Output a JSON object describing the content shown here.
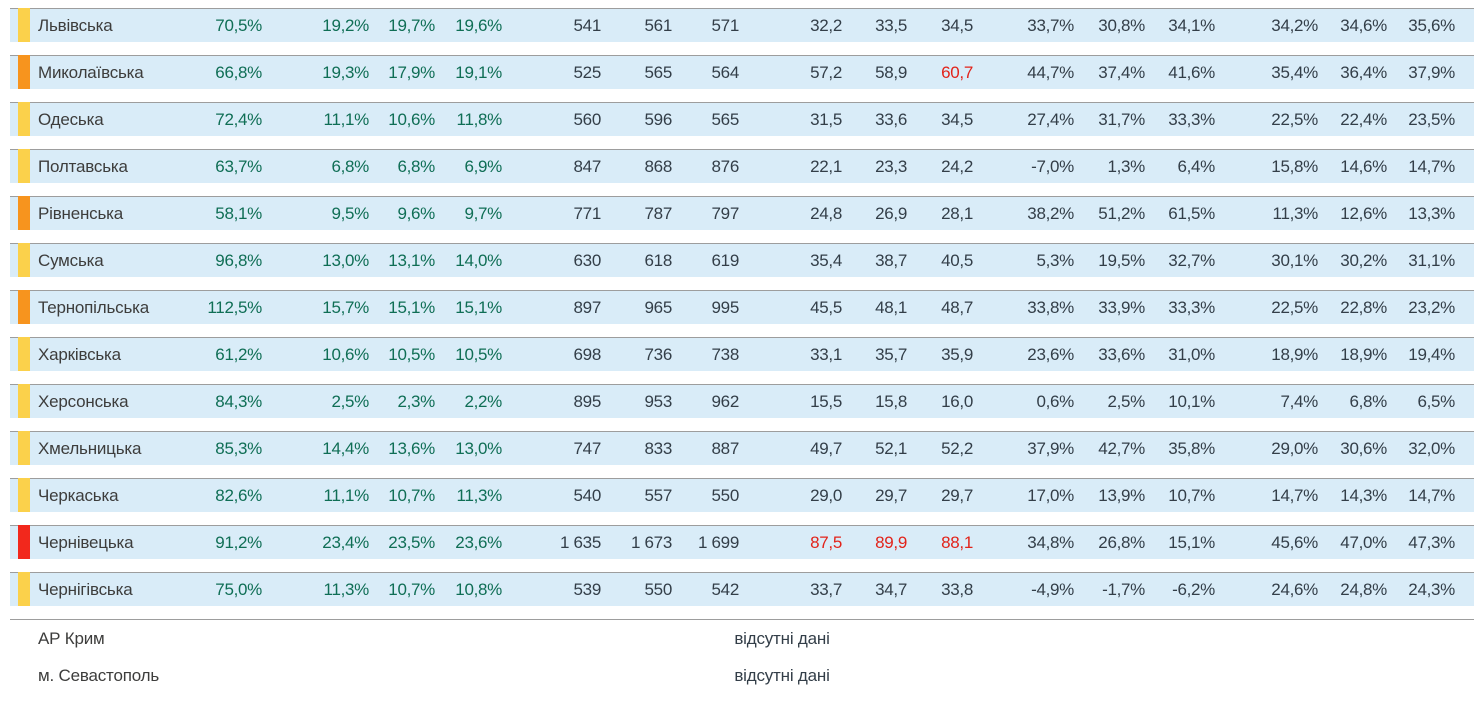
{
  "colors": {
    "row_background": "#d9ecf8",
    "row_border": "#9d9d9d",
    "indicator": {
      "yellow": "#fbd14b",
      "orange": "#f7941e",
      "red": "#f2281c"
    },
    "text_green": "#0f6e55",
    "text_navy": "#333e48",
    "text_red": "#e2231a",
    "text_name": "#3d3d3c"
  },
  "table": {
    "no_data_label": "відсутні дані",
    "rows": [
      {
        "indicator": "yellow",
        "name": "Львівська",
        "values": [
          "70,5%",
          "19,2%",
          "19,7%",
          "19,6%",
          "541",
          "561",
          "571",
          "32,2",
          "33,5",
          "34,5",
          "33,7%",
          "30,8%",
          "34,1%",
          "34,2%",
          "34,6%",
          "35,6%"
        ],
        "red": []
      },
      {
        "indicator": "orange",
        "name": "Миколаївська",
        "values": [
          "66,8%",
          "19,3%",
          "17,9%",
          "19,1%",
          "525",
          "565",
          "564",
          "57,2",
          "58,9",
          "60,7",
          "44,7%",
          "37,4%",
          "41,6%",
          "35,4%",
          "36,4%",
          "37,9%"
        ],
        "red": [
          9
        ]
      },
      {
        "indicator": "yellow",
        "name": "Одеська",
        "values": [
          "72,4%",
          "11,1%",
          "10,6%",
          "11,8%",
          "560",
          "596",
          "565",
          "31,5",
          "33,6",
          "34,5",
          "27,4%",
          "31,7%",
          "33,3%",
          "22,5%",
          "22,4%",
          "23,5%"
        ],
        "red": []
      },
      {
        "indicator": "yellow",
        "name": "Полтавська",
        "values": [
          "63,7%",
          "6,8%",
          "6,8%",
          "6,9%",
          "847",
          "868",
          "876",
          "22,1",
          "23,3",
          "24,2",
          "-7,0%",
          "1,3%",
          "6,4%",
          "15,8%",
          "14,6%",
          "14,7%"
        ],
        "red": []
      },
      {
        "indicator": "orange",
        "name": "Рівненська",
        "values": [
          "58,1%",
          "9,5%",
          "9,6%",
          "9,7%",
          "771",
          "787",
          "797",
          "24,8",
          "26,9",
          "28,1",
          "38,2%",
          "51,2%",
          "61,5%",
          "11,3%",
          "12,6%",
          "13,3%"
        ],
        "red": []
      },
      {
        "indicator": "yellow",
        "name": "Сумська",
        "values": [
          "96,8%",
          "13,0%",
          "13,1%",
          "14,0%",
          "630",
          "618",
          "619",
          "35,4",
          "38,7",
          "40,5",
          "5,3%",
          "19,5%",
          "32,7%",
          "30,1%",
          "30,2%",
          "31,1%"
        ],
        "red": []
      },
      {
        "indicator": "orange",
        "name": "Тернопільська",
        "values": [
          "112,5%",
          "15,7%",
          "15,1%",
          "15,1%",
          "897",
          "965",
          "995",
          "45,5",
          "48,1",
          "48,7",
          "33,8%",
          "33,9%",
          "33,3%",
          "22,5%",
          "22,8%",
          "23,2%"
        ],
        "red": []
      },
      {
        "indicator": "yellow",
        "name": "Харківська",
        "values": [
          "61,2%",
          "10,6%",
          "10,5%",
          "10,5%",
          "698",
          "736",
          "738",
          "33,1",
          "35,7",
          "35,9",
          "23,6%",
          "33,6%",
          "31,0%",
          "18,9%",
          "18,9%",
          "19,4%"
        ],
        "red": []
      },
      {
        "indicator": "yellow",
        "name": "Херсонська",
        "values": [
          "84,3%",
          "2,5%",
          "2,3%",
          "2,2%",
          "895",
          "953",
          "962",
          "15,5",
          "15,8",
          "16,0",
          "0,6%",
          "2,5%",
          "10,1%",
          "7,4%",
          "6,8%",
          "6,5%"
        ],
        "red": []
      },
      {
        "indicator": "yellow",
        "name": "Хмельницька",
        "values": [
          "85,3%",
          "14,4%",
          "13,6%",
          "13,0%",
          "747",
          "833",
          "887",
          "49,7",
          "52,1",
          "52,2",
          "37,9%",
          "42,7%",
          "35,8%",
          "29,0%",
          "30,6%",
          "32,0%"
        ],
        "red": []
      },
      {
        "indicator": "yellow",
        "name": "Черкаська",
        "values": [
          "82,6%",
          "11,1%",
          "10,7%",
          "11,3%",
          "540",
          "557",
          "550",
          "29,0",
          "29,7",
          "29,7",
          "17,0%",
          "13,9%",
          "10,7%",
          "14,7%",
          "14,3%",
          "14,7%"
        ],
        "red": []
      },
      {
        "indicator": "red",
        "name": "Чернівецька",
        "values": [
          "91,2%",
          "23,4%",
          "23,5%",
          "23,6%",
          "1 635",
          "1 673",
          "1 699",
          "87,5",
          "89,9",
          "88,1",
          "34,8%",
          "26,8%",
          "15,1%",
          "45,6%",
          "47,0%",
          "47,3%"
        ],
        "red": [
          7,
          8,
          9
        ]
      },
      {
        "indicator": "yellow",
        "name": "Чернігівська",
        "values": [
          "75,0%",
          "11,3%",
          "10,7%",
          "10,8%",
          "539",
          "550",
          "542",
          "33,7",
          "34,7",
          "33,8",
          "-4,9%",
          "-1,7%",
          "-6,2%",
          "24,6%",
          "24,8%",
          "24,3%"
        ],
        "red": []
      }
    ],
    "no_data_rows": [
      {
        "name": "АР Крим"
      },
      {
        "name": "м. Севастополь"
      }
    ]
  }
}
